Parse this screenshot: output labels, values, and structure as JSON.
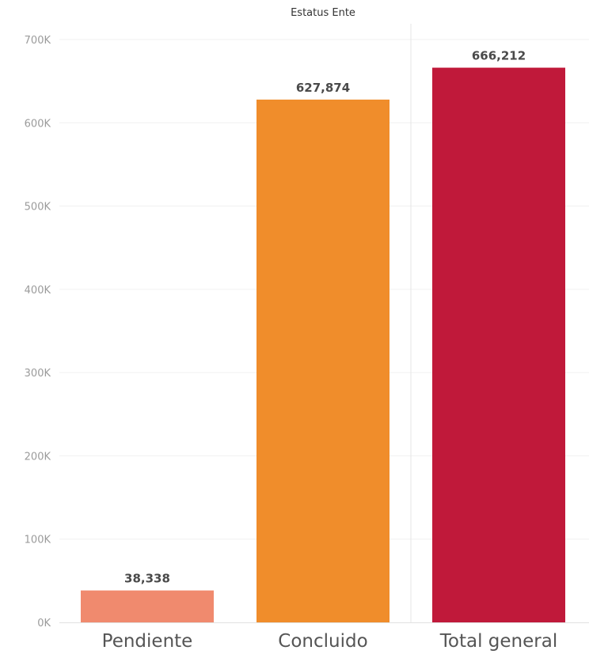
{
  "chart_data": {
    "type": "bar",
    "title": "Estatus Ente",
    "categories": [
      "Pendiente",
      "Concluido",
      "Total general"
    ],
    "values": [
      38338,
      627874,
      666212
    ],
    "value_labels": [
      "38,338",
      "627,874",
      "666,212"
    ],
    "colors": [
      "#f08a6e",
      "#f08d2b",
      "#c0193a"
    ],
    "ylim": [
      0,
      700000
    ],
    "y_ticks": [
      0,
      100000,
      200000,
      300000,
      400000,
      500000,
      600000,
      700000
    ],
    "y_tick_labels": [
      "0K",
      "100K",
      "200K",
      "300K",
      "400K",
      "500K",
      "600K",
      "700K"
    ],
    "xlabel": "",
    "ylabel": "",
    "grid": true,
    "legend": "none"
  }
}
